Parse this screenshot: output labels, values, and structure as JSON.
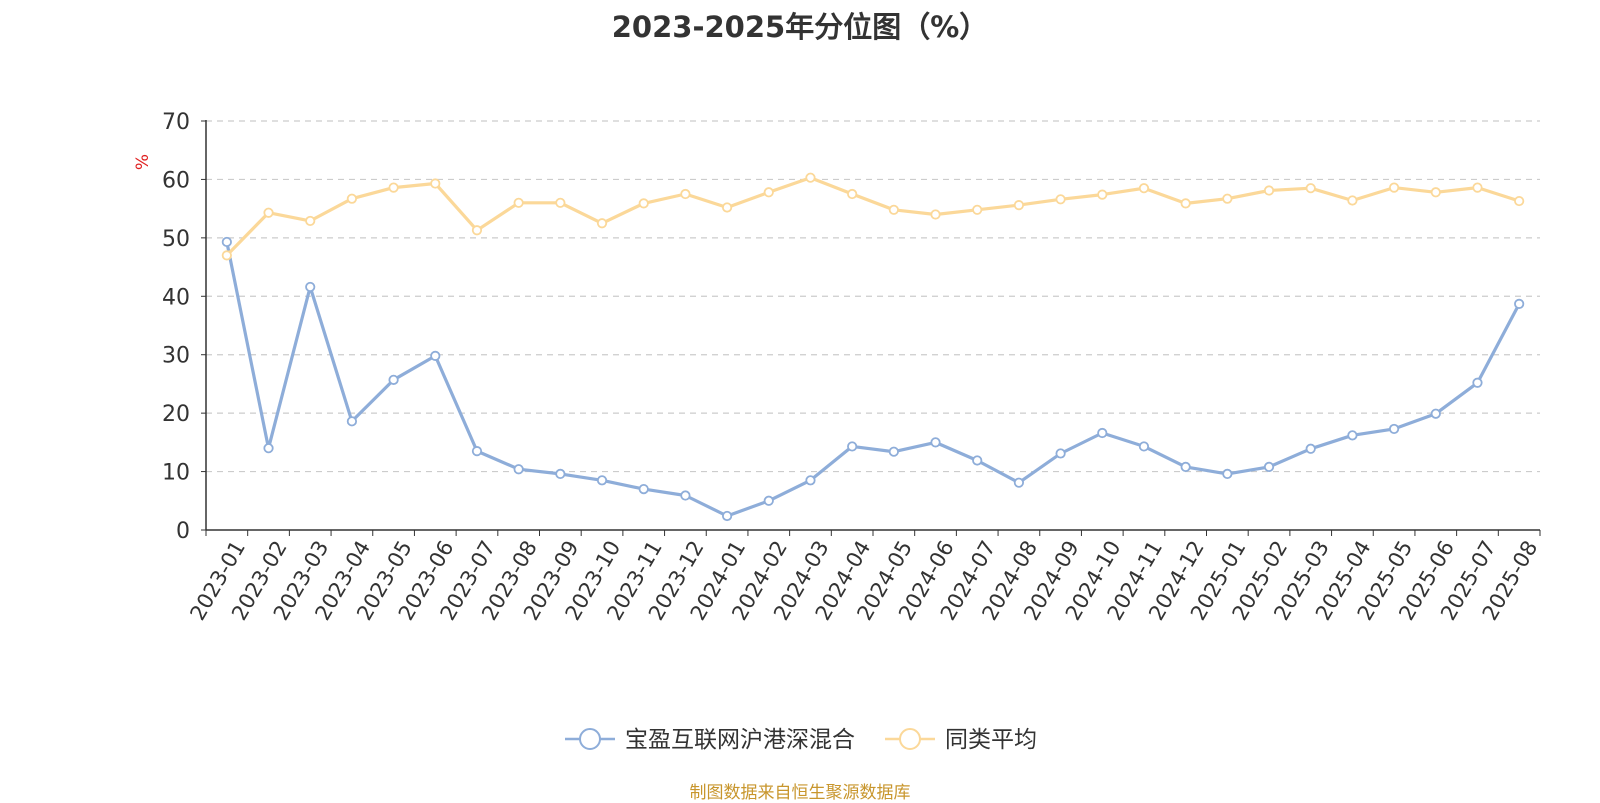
{
  "chart_data": {
    "type": "line",
    "title": "2023-2025年分位图（%）",
    "ylabel": "%",
    "ylim": [
      0,
      70
    ],
    "yticks": [
      0,
      10,
      20,
      30,
      40,
      50,
      60,
      70
    ],
    "grid": true,
    "legend_position": "bottom-center",
    "categories": [
      "2023-01",
      "2023-02",
      "2023-03",
      "2023-04",
      "2023-05",
      "2023-06",
      "2023-07",
      "2023-08",
      "2023-09",
      "2023-10",
      "2023-11",
      "2023-12",
      "2024-01",
      "2024-02",
      "2024-03",
      "2024-04",
      "2024-05",
      "2024-06",
      "2024-07",
      "2024-08",
      "2024-09",
      "2024-10",
      "2024-11",
      "2024-12",
      "2025-01",
      "2025-02",
      "2025-03",
      "2025-04",
      "2025-05",
      "2025-06",
      "2025-07",
      "2025-08"
    ],
    "series": [
      {
        "name": "宝盈互联网沪港深混合",
        "color": "#8eadd9",
        "values": [
          49.3,
          14.0,
          41.6,
          18.6,
          25.7,
          29.8,
          13.5,
          10.4,
          9.6,
          8.5,
          7.0,
          5.9,
          2.4,
          5.0,
          8.5,
          14.3,
          13.4,
          15.0,
          11.9,
          8.1,
          13.1,
          16.6,
          14.3,
          10.8,
          9.6,
          10.8,
          13.9,
          16.2,
          17.3,
          19.9,
          25.2,
          38.7
        ]
      },
      {
        "name": "同类平均",
        "color": "#fbd899",
        "values": [
          47.0,
          54.3,
          52.9,
          56.7,
          58.6,
          59.3,
          51.3,
          56.0,
          56.0,
          52.5,
          55.9,
          57.5,
          55.2,
          57.8,
          60.3,
          57.5,
          54.8,
          54.0,
          54.8,
          55.6,
          56.6,
          57.4,
          58.5,
          55.9,
          56.7,
          58.1,
          58.5,
          56.4,
          58.6,
          57.8,
          58.6,
          56.3
        ]
      }
    ]
  },
  "footer": {
    "source": "制图数据来自恒生聚源数据库"
  }
}
